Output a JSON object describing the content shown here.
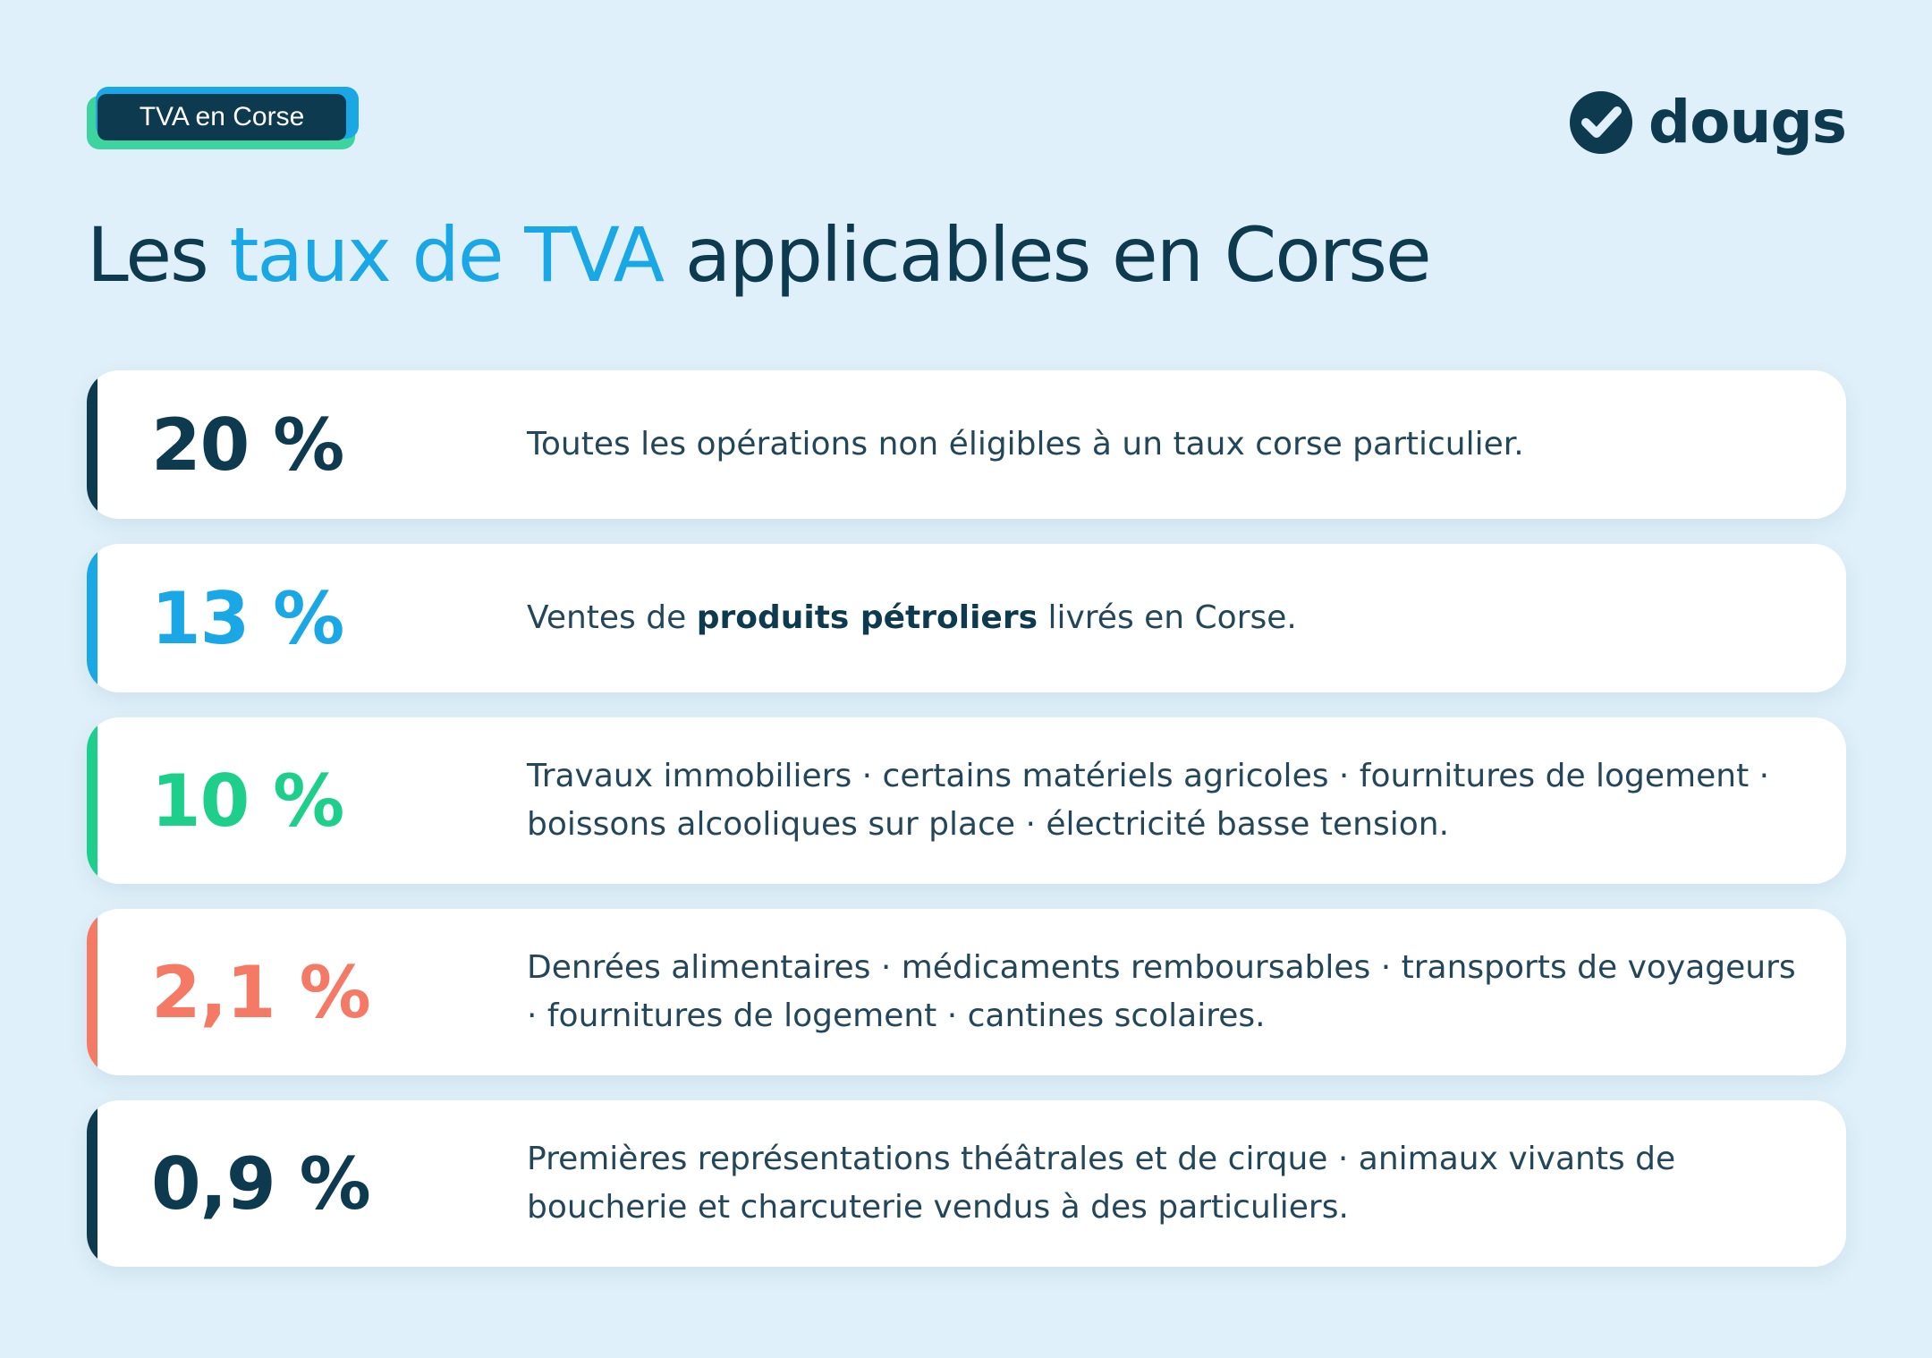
{
  "tag": {
    "label": "TVA en Corse"
  },
  "logo": {
    "text": "dougs",
    "icon": "check-circle-icon"
  },
  "title": {
    "part1": "Les ",
    "highlight": "taux de TVA",
    "part2": " applicables en Corse"
  },
  "colors": {
    "navy": "#0d3a4f",
    "blue": "#1aa7e6",
    "green": "#1ecf8c",
    "coral": "#f47a66"
  },
  "rates": [
    {
      "rate": "20 %",
      "color": "#0d3a4f",
      "height": 166,
      "desc_before": "Toutes les opérations non éligibles à un taux corse particulier.",
      "desc_bold": "",
      "desc_after": ""
    },
    {
      "rate": "13 %",
      "color": "#1aa7e6",
      "height": 166,
      "desc_before": "Ventes de ",
      "desc_bold": "produits pétroliers",
      "desc_after": " livrés en Corse."
    },
    {
      "rate": "10 %",
      "color": "#1ecf8c",
      "height": 186,
      "desc_before": "Travaux immobiliers · certains matériels agricoles · fournitures de logement · boissons alcooliques sur place · électricité basse tension.",
      "desc_bold": "",
      "desc_after": ""
    },
    {
      "rate": "2,1 %",
      "color": "#f47a66",
      "height": 186,
      "desc_before": "Denrées alimentaires · médicaments remboursables · transports de voyageurs · fournitures de logement · cantines scolaires.",
      "desc_bold": "",
      "desc_after": ""
    },
    {
      "rate": "0,9 %",
      "color": "#0d3a4f",
      "height": 186,
      "desc_before": "Premières représentations théâtrales et de cirque · animaux vivants de boucherie et charcuterie vendus à des particuliers.",
      "desc_bold": "",
      "desc_after": ""
    }
  ]
}
